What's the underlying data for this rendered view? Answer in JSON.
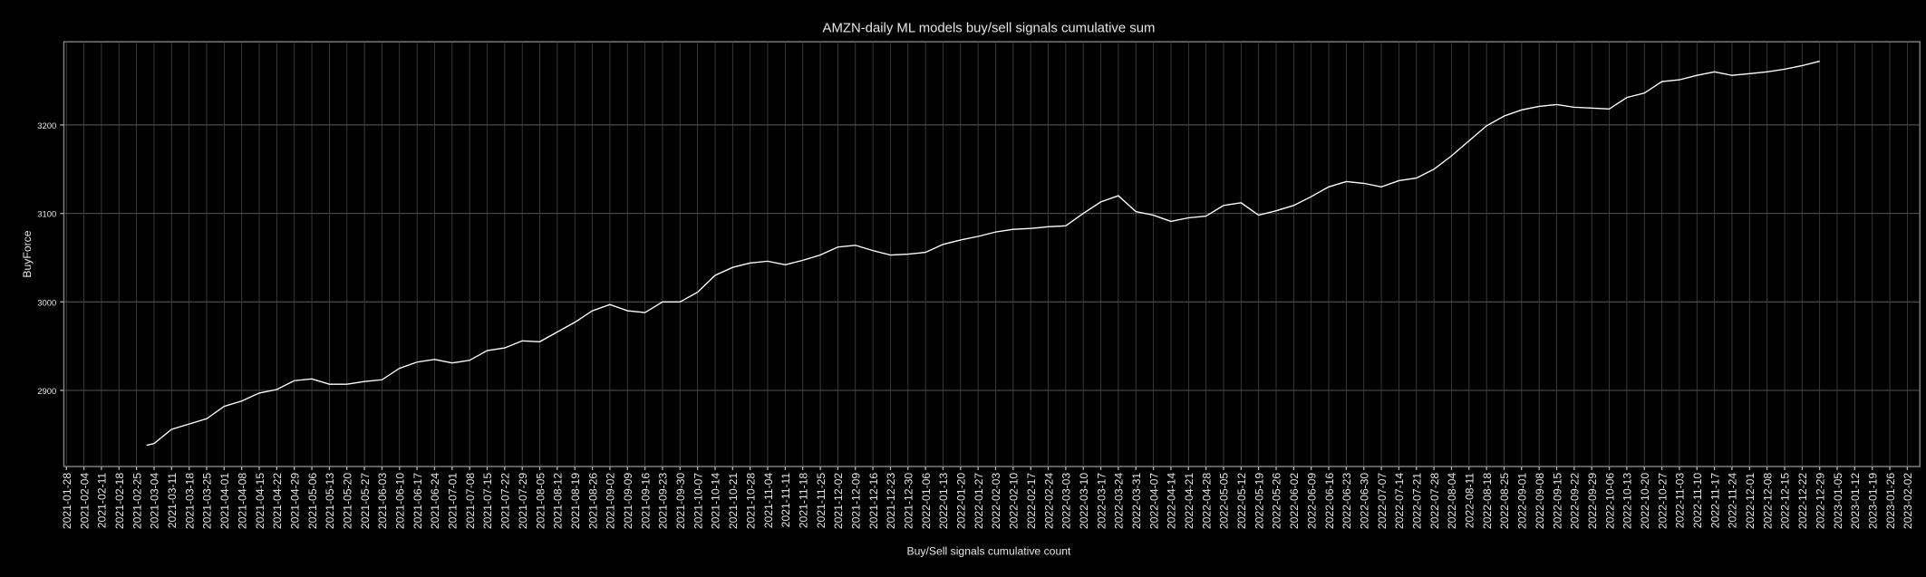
{
  "chart_data": {
    "type": "line",
    "title": "AMZN-daily ML models buy/sell signals cumulative sum",
    "x_label": "Buy/Sell signals cumulative count",
    "y_label": "BuyForce",
    "grid": true,
    "xlim": [
      "2021-01-27",
      "2023-02-07"
    ],
    "ylim": [
      2814,
      3294
    ],
    "yticks": [
      2900,
      3000,
      3100,
      3200
    ],
    "xticks": [
      "2021-01-28",
      "2021-02-04",
      "2021-02-11",
      "2021-02-18",
      "2021-02-25",
      "2021-03-04",
      "2021-03-11",
      "2021-03-18",
      "2021-03-25",
      "2021-04-01",
      "2021-04-08",
      "2021-04-15",
      "2021-04-22",
      "2021-04-29",
      "2021-05-06",
      "2021-05-13",
      "2021-05-20",
      "2021-05-27",
      "2021-06-03",
      "2021-06-10",
      "2021-06-17",
      "2021-06-24",
      "2021-07-01",
      "2021-07-08",
      "2021-07-15",
      "2021-07-22",
      "2021-07-29",
      "2021-08-05",
      "2021-08-12",
      "2021-08-19",
      "2021-08-26",
      "2021-09-02",
      "2021-09-09",
      "2021-09-16",
      "2021-09-23",
      "2021-09-30",
      "2021-10-07",
      "2021-10-14",
      "2021-10-21",
      "2021-10-28",
      "2021-11-04",
      "2021-11-11",
      "2021-11-18",
      "2021-11-25",
      "2021-12-02",
      "2021-12-09",
      "2021-12-16",
      "2021-12-23",
      "2021-12-30",
      "2022-01-06",
      "2022-01-13",
      "2022-01-20",
      "2022-01-27",
      "2022-02-03",
      "2022-02-10",
      "2022-02-17",
      "2022-02-24",
      "2022-03-03",
      "2022-03-10",
      "2022-03-17",
      "2022-03-24",
      "2022-03-31",
      "2022-04-07",
      "2022-04-14",
      "2022-04-21",
      "2022-04-28",
      "2022-05-05",
      "2022-05-12",
      "2022-05-19",
      "2022-05-26",
      "2022-06-02",
      "2022-06-09",
      "2022-06-16",
      "2022-06-23",
      "2022-06-30",
      "2022-07-07",
      "2022-07-14",
      "2022-07-21",
      "2022-07-28",
      "2022-08-04",
      "2022-08-11",
      "2022-08-18",
      "2022-08-25",
      "2022-09-01",
      "2022-09-08",
      "2022-09-15",
      "2022-09-22",
      "2022-09-29",
      "2022-10-06",
      "2022-10-13",
      "2022-10-20",
      "2022-10-27",
      "2022-11-03",
      "2022-11-10",
      "2022-11-17",
      "2022-11-24",
      "2022-12-01",
      "2022-12-08",
      "2022-12-15",
      "2022-12-22",
      "2022-12-29",
      "2023-01-05",
      "2023-01-12",
      "2023-01-19",
      "2023-01-26",
      "2023-02-02"
    ],
    "x": [
      "2021-03-01",
      "2021-03-04",
      "2021-03-11",
      "2021-03-18",
      "2021-03-25",
      "2021-04-01",
      "2021-04-08",
      "2021-04-15",
      "2021-04-22",
      "2021-04-29",
      "2021-05-06",
      "2021-05-13",
      "2021-05-20",
      "2021-05-27",
      "2021-06-03",
      "2021-06-10",
      "2021-06-17",
      "2021-06-24",
      "2021-07-01",
      "2021-07-08",
      "2021-07-15",
      "2021-07-22",
      "2021-07-29",
      "2021-08-05",
      "2021-08-12",
      "2021-08-19",
      "2021-08-26",
      "2021-09-02",
      "2021-09-09",
      "2021-09-16",
      "2021-09-23",
      "2021-09-30",
      "2021-10-07",
      "2021-10-14",
      "2021-10-21",
      "2021-10-28",
      "2021-11-04",
      "2021-11-11",
      "2021-11-18",
      "2021-11-25",
      "2021-12-02",
      "2021-12-09",
      "2021-12-16",
      "2021-12-23",
      "2021-12-30",
      "2022-01-06",
      "2022-01-13",
      "2022-01-20",
      "2022-01-27",
      "2022-02-03",
      "2022-02-10",
      "2022-02-17",
      "2022-02-24",
      "2022-03-03",
      "2022-03-10",
      "2022-03-17",
      "2022-03-24",
      "2022-03-31",
      "2022-04-07",
      "2022-04-14",
      "2022-04-21",
      "2022-04-28",
      "2022-05-05",
      "2022-05-12",
      "2022-05-19",
      "2022-05-26",
      "2022-06-02",
      "2022-06-09",
      "2022-06-16",
      "2022-06-23",
      "2022-06-30",
      "2022-07-07",
      "2022-07-14",
      "2022-07-21",
      "2022-07-28",
      "2022-08-04",
      "2022-08-11",
      "2022-08-18",
      "2022-08-25",
      "2022-09-01",
      "2022-09-08",
      "2022-09-15",
      "2022-09-22",
      "2022-09-29",
      "2022-10-06",
      "2022-10-13",
      "2022-10-20",
      "2022-10-27",
      "2022-11-03",
      "2022-11-10",
      "2022-11-17",
      "2022-11-24",
      "2022-12-01",
      "2022-12-08",
      "2022-12-15",
      "2022-12-22",
      "2022-12-29"
    ],
    "series": [
      {
        "color": "#ffffff",
        "values": [
          2838,
          2840,
          2856,
          2862,
          2868,
          2882,
          2888,
          2897,
          2901,
          2911,
          2913,
          2907,
          2907,
          2910,
          2912,
          2925,
          2932,
          2935,
          2931,
          2934,
          2945,
          2948,
          2956,
          2955,
          2966,
          2977,
          2990,
          2997,
          2990,
          2988,
          3000,
          3000,
          3011,
          3030,
          3039,
          3044,
          3046,
          3042,
          3047,
          3053,
          3062,
          3064,
          3058,
          3053,
          3054,
          3056,
          3065,
          3070,
          3074,
          3079,
          3082,
          3083,
          3085,
          3086,
          3100,
          3113,
          3120,
          3102,
          3098,
          3091,
          3095,
          3097,
          3109,
          3112,
          3098,
          3103,
          3109,
          3119,
          3130,
          3136,
          3134,
          3130,
          3137,
          3140,
          3150,
          3165,
          3182,
          3199,
          3210,
          3217,
          3221,
          3223,
          3220,
          3219,
          3218,
          3231,
          3236,
          3249,
          3251,
          3256,
          3260,
          3256,
          3258,
          3260,
          3263,
          3267,
          3272
        ]
      }
    ]
  }
}
